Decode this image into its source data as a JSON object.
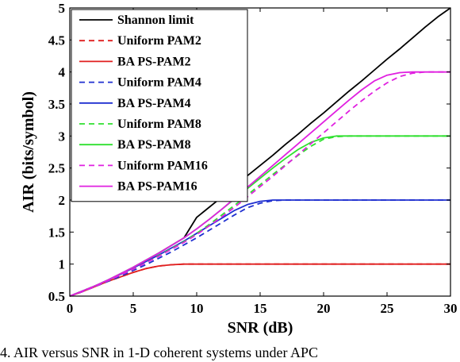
{
  "caption": "4. AIR versus SNR in 1-D coherent systems under APC",
  "chart_data": {
    "type": "line",
    "title": "",
    "xlabel": "SNR (dB)",
    "ylabel": "AIR (bits/symbol)",
    "xlim": [
      0,
      30
    ],
    "ylim": [
      0.5,
      5
    ],
    "xticks": [
      0,
      5,
      10,
      15,
      20,
      25,
      30
    ],
    "yticks": [
      0.5,
      1,
      1.5,
      2,
      2.5,
      3,
      3.5,
      4,
      4.5,
      5
    ],
    "grid": false,
    "legend_position": "top-left",
    "x": [
      0,
      1,
      2,
      3,
      4,
      5,
      6,
      7,
      8,
      9,
      10,
      11,
      12,
      13,
      14,
      15,
      16,
      17,
      18,
      19,
      20,
      21,
      22,
      23,
      24,
      25,
      26,
      27,
      28,
      29,
      30
    ],
    "series": [
      {
        "name": "Shannon limit",
        "color": "#000000",
        "dash": "solid",
        "values": [
          0.5,
          0.58,
          0.66,
          0.75,
          0.85,
          0.95,
          1.06,
          1.17,
          1.29,
          1.41,
          1.73,
          1.89,
          2.05,
          2.21,
          2.38,
          2.54,
          2.7,
          2.87,
          3.03,
          3.2,
          3.36,
          3.53,
          3.7,
          3.86,
          4.03,
          4.2,
          4.36,
          4.53,
          4.7,
          4.86,
          5.0
        ]
      },
      {
        "name": "Uniform PAM2",
        "color": "#e01f1f",
        "dash": "dashed",
        "values": [
          0.5,
          0.57,
          0.65,
          0.73,
          0.8,
          0.87,
          0.93,
          0.97,
          0.99,
          1.0,
          1.0,
          1.0,
          1.0,
          1.0,
          1.0,
          1.0,
          1.0,
          1.0,
          1.0,
          1.0,
          1.0,
          1.0,
          1.0,
          1.0,
          1.0,
          1.0,
          1.0,
          1.0,
          1.0,
          1.0,
          1.0
        ]
      },
      {
        "name": "BA PS-PAM2",
        "color": "#e01f1f",
        "dash": "solid",
        "values": [
          0.5,
          0.57,
          0.65,
          0.73,
          0.8,
          0.87,
          0.93,
          0.97,
          0.99,
          1.0,
          1.0,
          1.0,
          1.0,
          1.0,
          1.0,
          1.0,
          1.0,
          1.0,
          1.0,
          1.0,
          1.0,
          1.0,
          1.0,
          1.0,
          1.0,
          1.0,
          1.0,
          1.0,
          1.0,
          1.0,
          1.0
        ]
      },
      {
        "name": "Uniform PAM4",
        "color": "#1f2fd0",
        "dash": "dashed",
        "values": [
          0.5,
          0.57,
          0.65,
          0.73,
          0.81,
          0.9,
          0.99,
          1.09,
          1.19,
          1.3,
          1.41,
          1.53,
          1.65,
          1.77,
          1.88,
          1.95,
          1.99,
          2.0,
          2.0,
          2.0,
          2.0,
          2.0,
          2.0,
          2.0,
          2.0,
          2.0,
          2.0,
          2.0,
          2.0,
          2.0,
          2.0
        ]
      },
      {
        "name": "BA PS-PAM4",
        "color": "#1f2fd0",
        "dash": "solid",
        "values": [
          0.5,
          0.58,
          0.66,
          0.75,
          0.84,
          0.94,
          1.04,
          1.14,
          1.25,
          1.36,
          1.48,
          1.6,
          1.72,
          1.84,
          1.93,
          1.98,
          2.0,
          2.0,
          2.0,
          2.0,
          2.0,
          2.0,
          2.0,
          2.0,
          2.0,
          2.0,
          2.0,
          2.0,
          2.0,
          2.0,
          2.0
        ]
      },
      {
        "name": "Uniform PAM8",
        "color": "#2fe02f",
        "dash": "dashed",
        "values": [
          0.5,
          0.57,
          0.65,
          0.74,
          0.83,
          0.92,
          1.02,
          1.13,
          1.24,
          1.35,
          1.48,
          1.62,
          1.77,
          1.92,
          2.08,
          2.24,
          2.4,
          2.55,
          2.7,
          2.84,
          2.95,
          2.99,
          3.0,
          3.0,
          3.0,
          3.0,
          3.0,
          3.0,
          3.0,
          3.0,
          3.0
        ]
      },
      {
        "name": "BA PS-PAM8",
        "color": "#2fe02f",
        "dash": "solid",
        "values": [
          0.5,
          0.58,
          0.66,
          0.75,
          0.85,
          0.95,
          1.06,
          1.17,
          1.29,
          1.41,
          1.55,
          1.7,
          1.86,
          2.02,
          2.18,
          2.34,
          2.5,
          2.65,
          2.79,
          2.9,
          2.97,
          3.0,
          3.0,
          3.0,
          3.0,
          3.0,
          3.0,
          3.0,
          3.0,
          3.0,
          3.0
        ]
      },
      {
        "name": "Uniform PAM16",
        "color": "#e020e0",
        "dash": "dashed",
        "values": [
          0.5,
          0.57,
          0.65,
          0.74,
          0.83,
          0.92,
          1.02,
          1.12,
          1.23,
          1.34,
          1.46,
          1.6,
          1.74,
          1.89,
          2.05,
          2.21,
          2.37,
          2.54,
          2.71,
          2.88,
          3.05,
          3.22,
          3.39,
          3.55,
          3.7,
          3.83,
          3.93,
          3.98,
          4.0,
          4.0,
          4.0
        ]
      },
      {
        "name": "BA PS-PAM16",
        "color": "#e020e0",
        "dash": "solid",
        "values": [
          0.5,
          0.58,
          0.66,
          0.75,
          0.85,
          0.95,
          1.06,
          1.17,
          1.29,
          1.41,
          1.55,
          1.7,
          1.86,
          2.03,
          2.2,
          2.37,
          2.54,
          2.71,
          2.88,
          3.05,
          3.22,
          3.39,
          3.56,
          3.72,
          3.86,
          3.95,
          3.99,
          4.0,
          4.0,
          4.0,
          4.0
        ]
      }
    ]
  }
}
